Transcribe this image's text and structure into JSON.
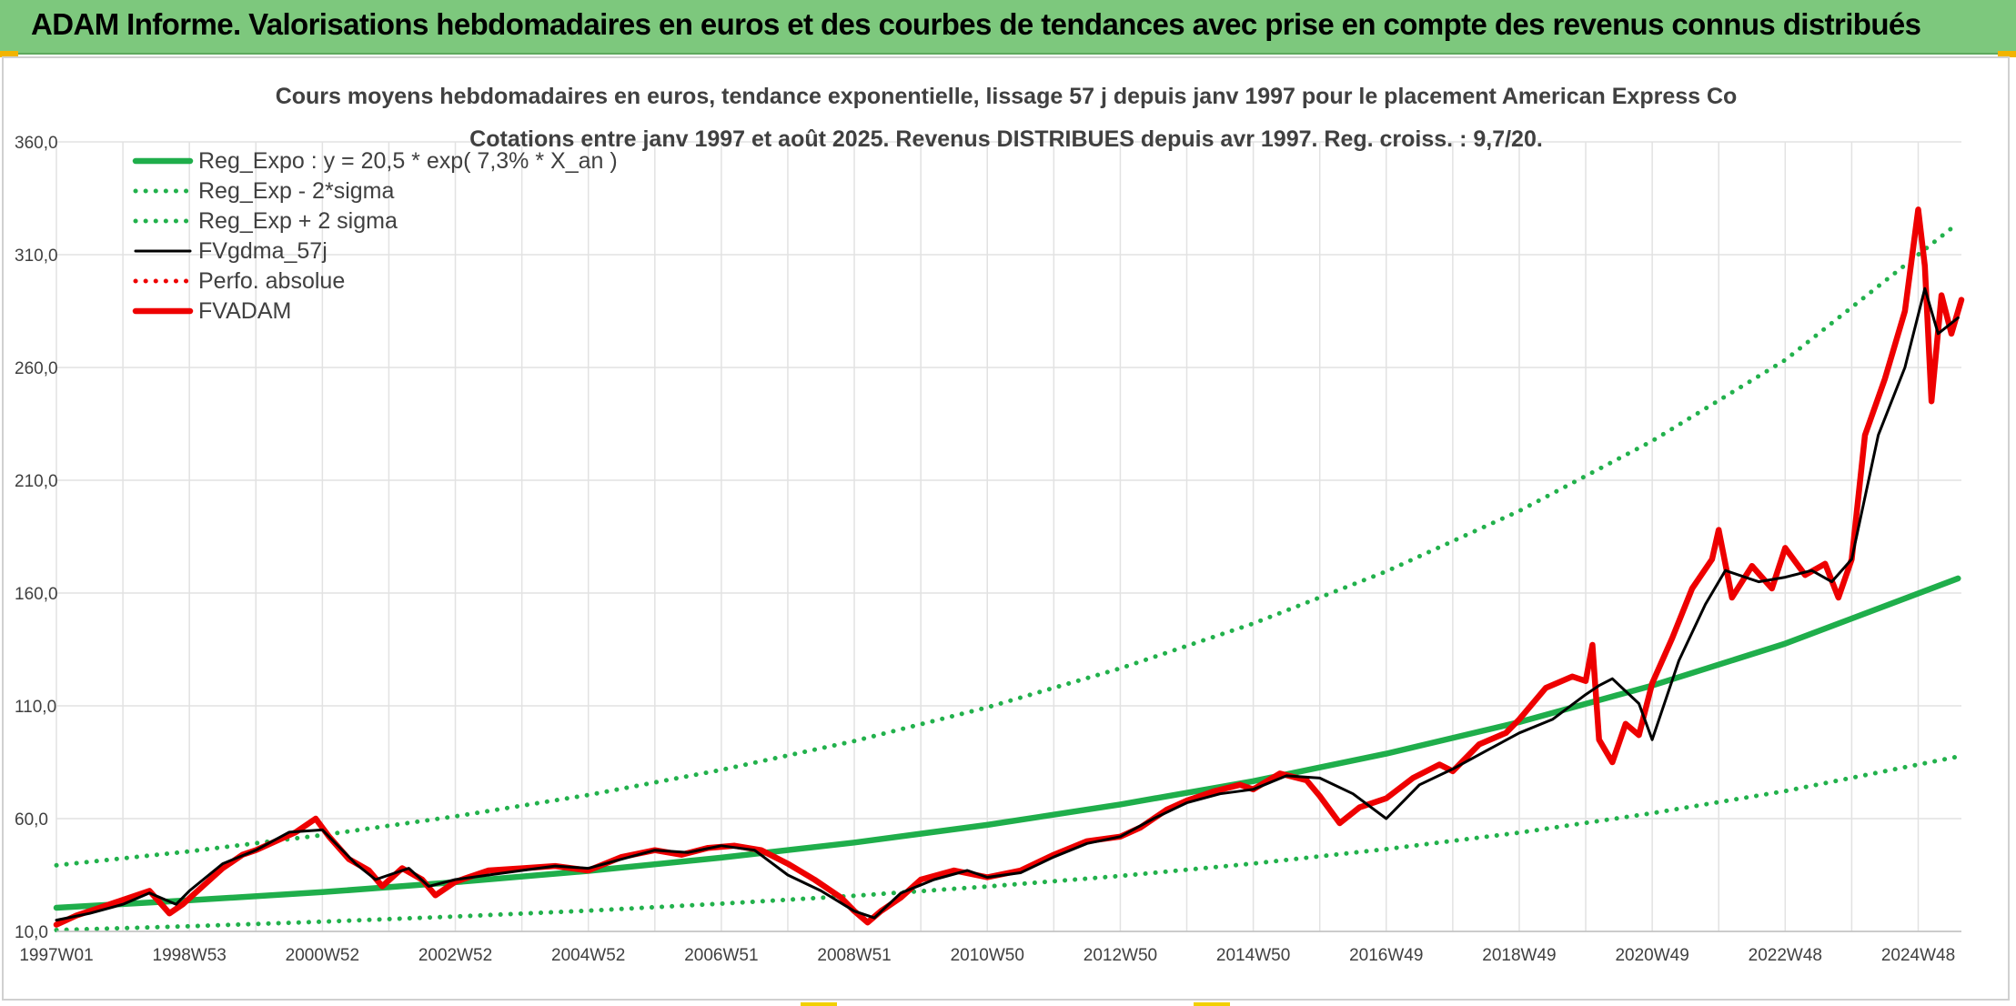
{
  "header": {
    "title": "ADAM Informe. Valorisations hebdomadaires en euros et des courbes de tendances avec prise en compte des revenus connus distribués"
  },
  "colors": {
    "header_bg": "#7dc87d",
    "trend_green": "#1fae4b",
    "band_green": "#22b14c",
    "smooth_black": "#000000",
    "price_red": "#ee0000",
    "gridline": "#e2e2e2",
    "text": "#404040"
  },
  "chart_data": {
    "type": "line",
    "title": "Cours moyens hebdomadaires en euros, tendance exponentielle, lissage 57 j depuis janv 1997 pour le placement American Express Co",
    "subtitle": "Cotations entre janv 1997 et août 2025. Revenus DISTRIBUES depuis avr 1997. Reg. croiss. : 9,7/20.",
    "xlabel": "",
    "ylabel": "",
    "ylim": [
      10,
      360
    ],
    "xlim": [
      1997.0,
      2025.65
    ],
    "y_ticks": [
      "10,0",
      "60,0",
      "110,0",
      "160,0",
      "210,0",
      "260,0",
      "310,0",
      "360,0"
    ],
    "x_ticks": [
      {
        "label": "1997W01",
        "x": 1997.0
      },
      {
        "label": "1998W53",
        "x": 1999.0
      },
      {
        "label": "2000W52",
        "x": 2001.0
      },
      {
        "label": "2002W52",
        "x": 2003.0
      },
      {
        "label": "2004W52",
        "x": 2005.0
      },
      {
        "label": "2006W51",
        "x": 2007.0
      },
      {
        "label": "2008W51",
        "x": 2009.0
      },
      {
        "label": "2010W50",
        "x": 2011.0
      },
      {
        "label": "2012W50",
        "x": 2013.0
      },
      {
        "label": "2014W50",
        "x": 2015.0
      },
      {
        "label": "2016W49",
        "x": 2017.0
      },
      {
        "label": "2018W49",
        "x": 2019.0
      },
      {
        "label": "2020W49",
        "x": 2021.0
      },
      {
        "label": "2022W48",
        "x": 2023.0
      },
      {
        "label": "2024W48",
        "x": 2025.0
      }
    ],
    "grid": true,
    "legend_position": "top-left",
    "series": [
      {
        "name": "Reg_Expo : y = 20,5 * exp( 7,3% *  X_an )",
        "style": "solid-thick",
        "color": "#1fae4b",
        "x": [
          1997,
          1999,
          2001,
          2003,
          2005,
          2007,
          2009,
          2011,
          2013,
          2015,
          2017,
          2019,
          2021,
          2023,
          2025.6
        ],
        "values": [
          20.5,
          23.8,
          27.4,
          31.8,
          36.8,
          42.7,
          49.4,
          57.2,
          66.3,
          76.6,
          88.8,
          102.8,
          119.0,
          137.6,
          166.5
        ]
      },
      {
        "name": "Reg_Exp - 2*sigma",
        "style": "dotted",
        "color": "#22b14c",
        "x": [
          1997,
          1999,
          2001,
          2003,
          2005,
          2007,
          2009,
          2011,
          2013,
          2015,
          2017,
          2019,
          2021,
          2023,
          2025.6
        ],
        "values": [
          10.6,
          12.3,
          14.3,
          16.6,
          19.2,
          22.3,
          25.8,
          29.9,
          34.6,
          40.1,
          46.5,
          53.8,
          62.4,
          72.2,
          87.5
        ]
      },
      {
        "name": "Reg_Exp + 2 sigma",
        "style": "dotted",
        "color": "#22b14c",
        "x": [
          1997,
          1999,
          2001,
          2003,
          2005,
          2007,
          2009,
          2011,
          2013,
          2015,
          2017,
          2019,
          2021,
          2023,
          2025.6
        ],
        "values": [
          39.3,
          45.5,
          52.7,
          61.0,
          70.5,
          81.6,
          94.4,
          109.3,
          126.6,
          146.5,
          169.6,
          196.4,
          227.4,
          263.3,
          324.0
        ]
      },
      {
        "name": "FVgdma_57j",
        "style": "solid",
        "color": "#000000",
        "x": [
          1997.0,
          1997.5,
          1998.0,
          1998.4,
          1998.8,
          1999.0,
          1999.5,
          2000.0,
          2000.5,
          2001.0,
          2001.5,
          2001.8,
          2002.3,
          2002.6,
          2003.0,
          2003.5,
          2004.0,
          2004.5,
          2005.0,
          2005.5,
          2006.0,
          2006.5,
          2007.0,
          2007.5,
          2008.0,
          2008.5,
          2009.0,
          2009.3,
          2009.7,
          2010.2,
          2010.7,
          2011.0,
          2011.5,
          2012.0,
          2012.5,
          2013.0,
          2013.5,
          2014.0,
          2014.5,
          2015.0,
          2015.5,
          2016.0,
          2016.5,
          2017.0,
          2017.5,
          2018.0,
          2018.5,
          2019.0,
          2019.5,
          2020.0,
          2020.2,
          2020.4,
          2020.8,
          2021.0,
          2021.4,
          2021.8,
          2022.1,
          2022.6,
          2023.0,
          2023.4,
          2023.7,
          2024.0,
          2024.4,
          2024.8,
          2025.1,
          2025.3,
          2025.6
        ],
        "values": [
          15.0,
          18.0,
          22.0,
          27.0,
          22.0,
          28.0,
          40.0,
          46.0,
          54.0,
          55.0,
          40.0,
          33.0,
          38.0,
          30.0,
          33.0,
          35.0,
          37.0,
          39.0,
          38.0,
          42.0,
          46.0,
          45.0,
          48.0,
          46.0,
          35.0,
          28.0,
          19.0,
          16.0,
          27.0,
          33.0,
          37.0,
          34.0,
          36.0,
          43.0,
          49.0,
          52.0,
          60.0,
          67.0,
          71.0,
          73.0,
          79.0,
          78.0,
          71.0,
          60.0,
          75.0,
          82.0,
          90.0,
          98.0,
          104.0,
          115.0,
          119.0,
          122.0,
          111.0,
          95.0,
          130.0,
          155.0,
          170.0,
          165.0,
          167.0,
          170.0,
          165.0,
          175.0,
          230.0,
          260.0,
          295.0,
          275.0,
          282.0
        ]
      },
      {
        "name": "Perfo. absolue",
        "style": "dotted",
        "color": "#ee0000",
        "x": [],
        "values": []
      },
      {
        "name": "FVADAM",
        "style": "solid-thick",
        "color": "#ee0000",
        "x": [
          1997.0,
          1997.3,
          1997.6,
          1998.0,
          1998.4,
          1998.7,
          1998.9,
          1999.2,
          1999.5,
          1999.8,
          2000.0,
          2000.3,
          2000.6,
          2000.9,
          2001.1,
          2001.4,
          2001.7,
          2001.9,
          2002.2,
          2002.5,
          2002.7,
          2003.0,
          2003.5,
          2004.0,
          2004.5,
          2005.0,
          2005.5,
          2006.0,
          2006.4,
          2006.8,
          2007.2,
          2007.6,
          2008.0,
          2008.4,
          2008.8,
          2009.0,
          2009.2,
          2009.4,
          2009.7,
          2010.0,
          2010.5,
          2011.0,
          2011.5,
          2012.0,
          2012.5,
          2013.0,
          2013.3,
          2013.7,
          2014.0,
          2014.4,
          2014.8,
          2015.0,
          2015.4,
          2015.8,
          2016.0,
          2016.3,
          2016.6,
          2017.0,
          2017.4,
          2017.8,
          2018.0,
          2018.4,
          2018.8,
          2019.0,
          2019.4,
          2019.8,
          2020.0,
          2020.1,
          2020.2,
          2020.4,
          2020.6,
          2020.8,
          2021.0,
          2021.3,
          2021.6,
          2021.9,
          2022.0,
          2022.2,
          2022.5,
          2022.8,
          2023.0,
          2023.3,
          2023.6,
          2023.8,
          2024.0,
          2024.2,
          2024.5,
          2024.8,
          2025.0,
          2025.1,
          2025.2,
          2025.35,
          2025.5,
          2025.65
        ],
        "values": [
          13.0,
          17.0,
          20.0,
          24.0,
          28.0,
          18.0,
          22.0,
          30.0,
          38.0,
          44.0,
          46.0,
          50.0,
          54.0,
          60.0,
          52.0,
          42.0,
          37.0,
          30.0,
          38.0,
          33.0,
          26.0,
          32.0,
          37.0,
          38.0,
          39.0,
          37.0,
          43.0,
          46.0,
          44.0,
          47.0,
          48.0,
          46.0,
          40.0,
          33.0,
          25.0,
          19.0,
          14.0,
          19.0,
          25.0,
          33.0,
          37.0,
          34.0,
          37.0,
          44.0,
          50.0,
          52.0,
          56.0,
          64.0,
          68.0,
          72.0,
          75.0,
          73.0,
          80.0,
          77.0,
          70.0,
          58.0,
          65.0,
          69.0,
          78.0,
          84.0,
          81.0,
          93.0,
          98.0,
          104.0,
          118.0,
          123.0,
          121.0,
          137.0,
          95.0,
          85.0,
          102.0,
          97.0,
          120.0,
          140.0,
          162.0,
          175.0,
          188.0,
          158.0,
          172.0,
          162.0,
          180.0,
          168.0,
          173.0,
          158.0,
          175.0,
          230.0,
          255.0,
          285.0,
          330.0,
          305.0,
          245.0,
          292.0,
          275.0,
          290.0
        ]
      }
    ]
  }
}
